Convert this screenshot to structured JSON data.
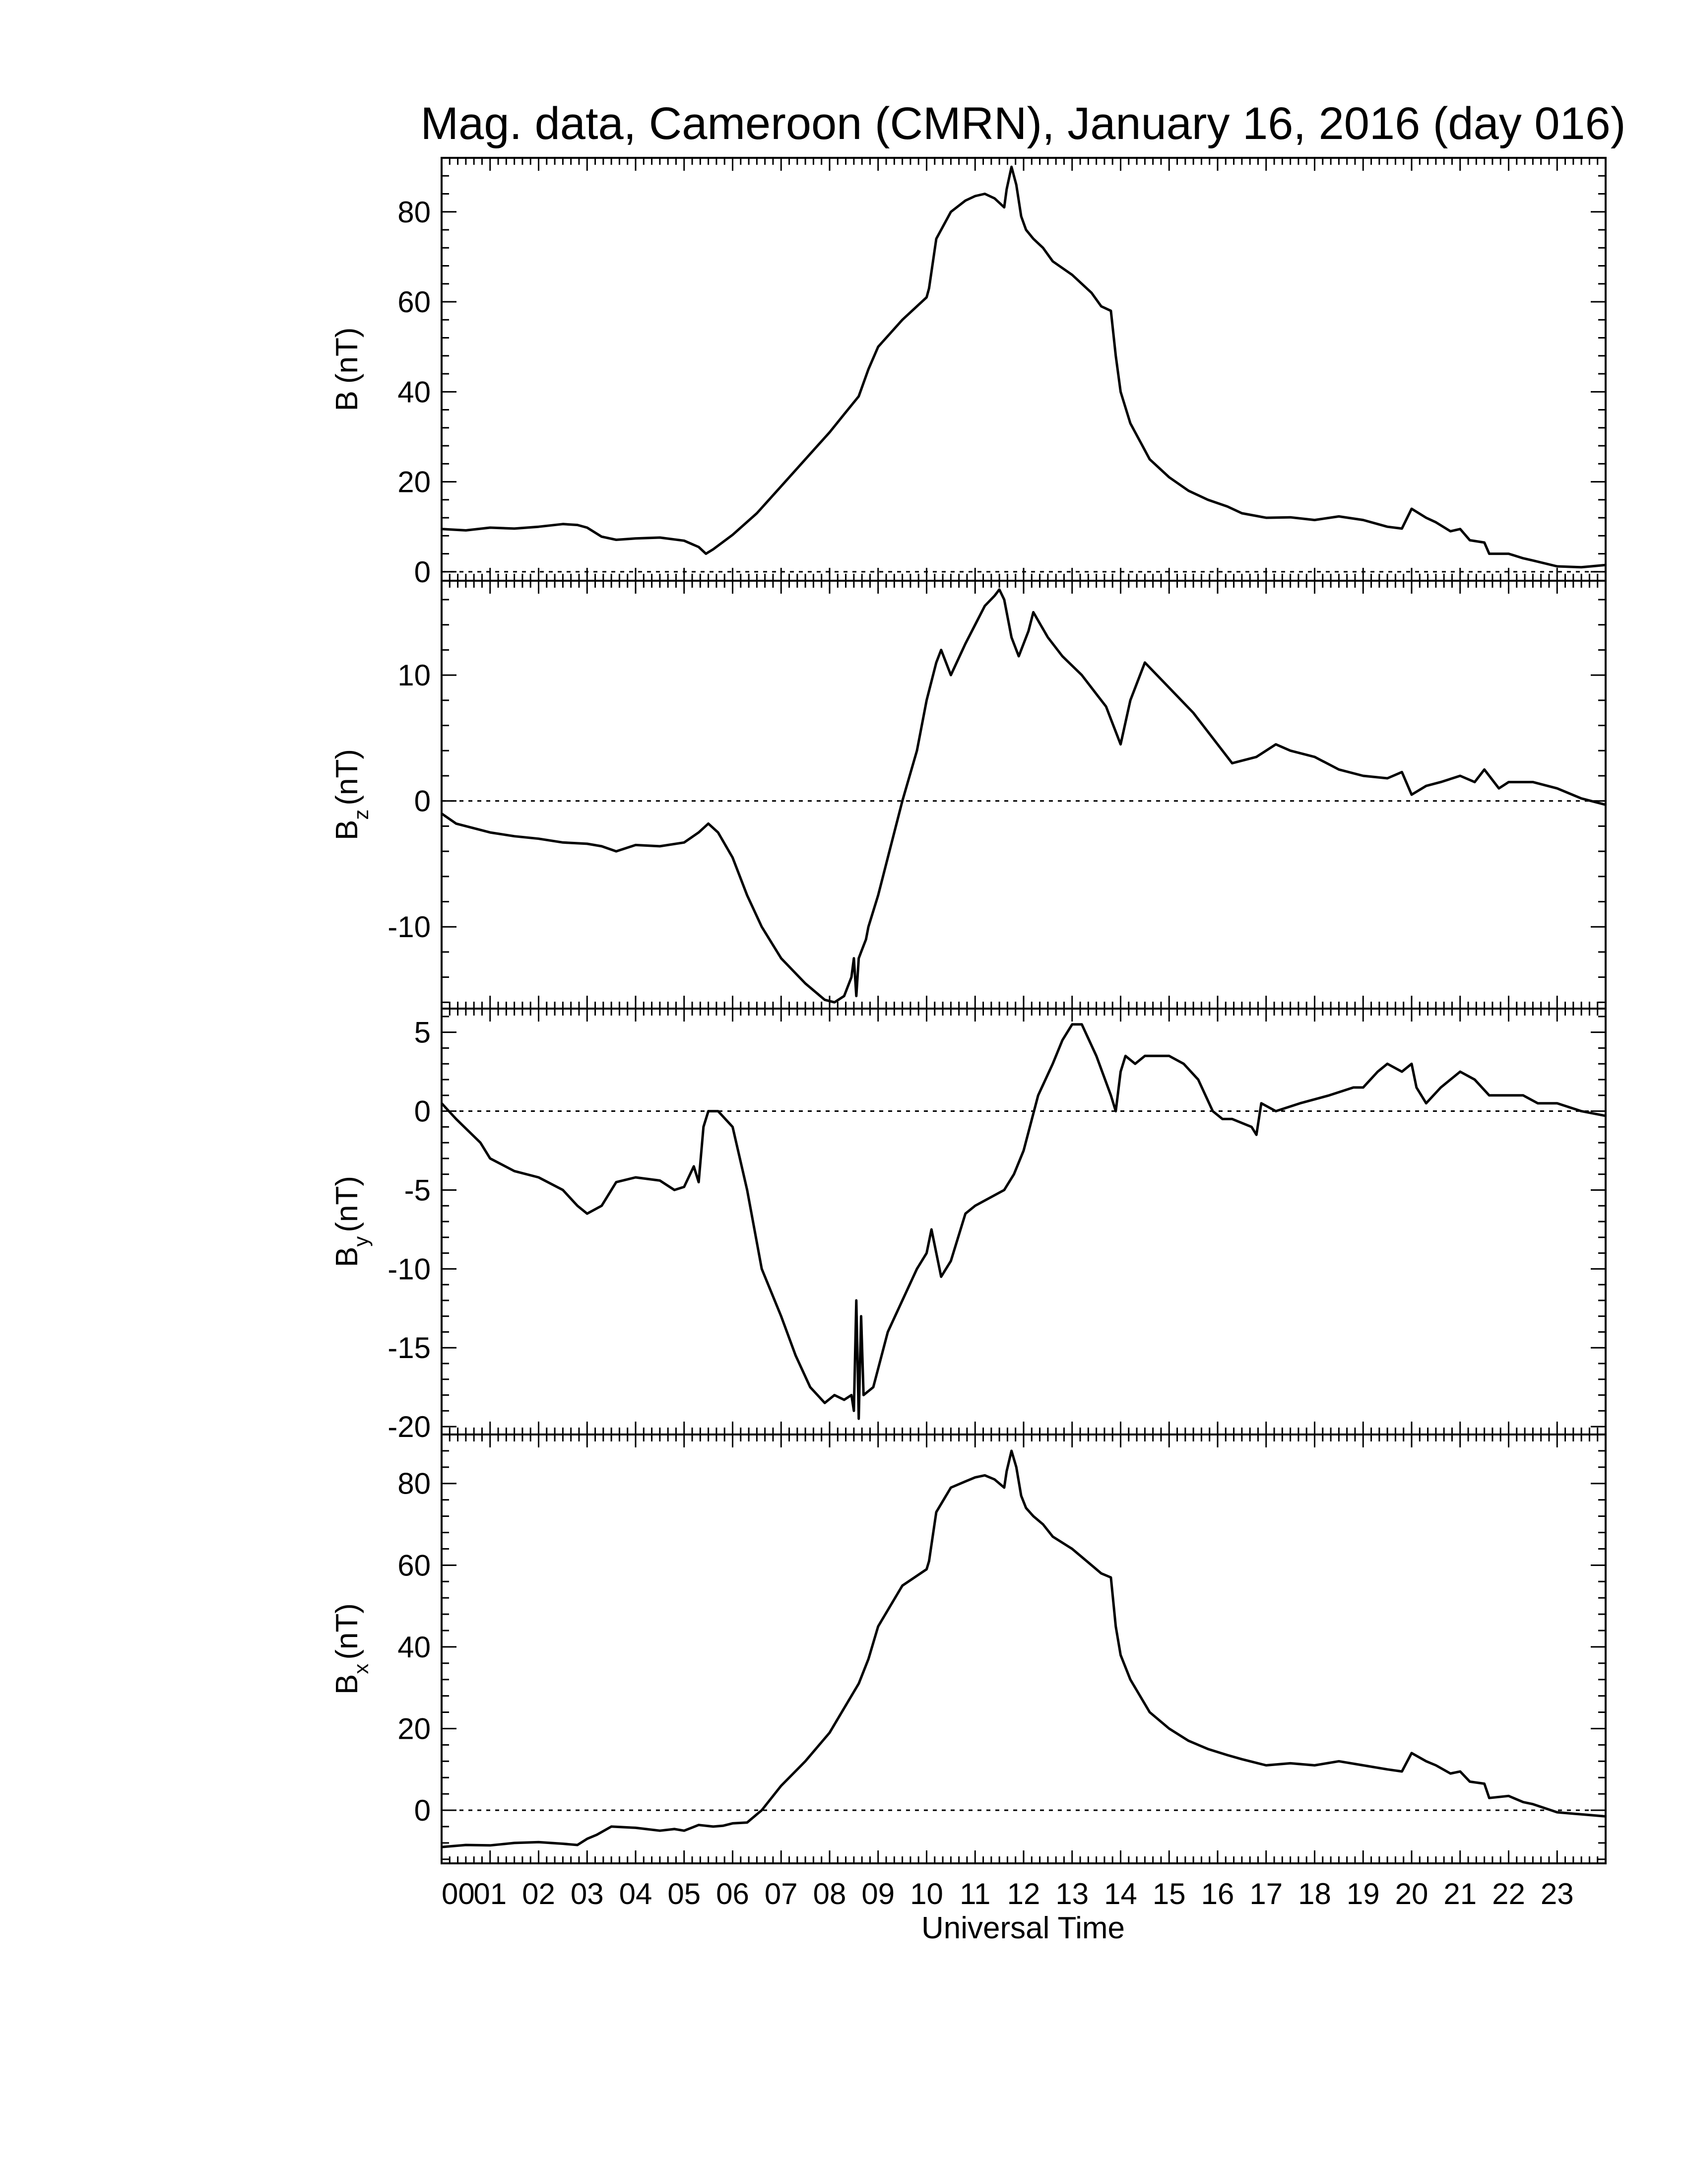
{
  "title": "Mag. data, Cameroon (CMRN), January 16, 2016 (day 016)",
  "chart_data": [
    {
      "type": "line",
      "id": "B",
      "ylabel": "B (nT)",
      "ylabel_main": "B",
      "ylabel_sub": "",
      "ylabel_unit": "(nT)",
      "xlim": [
        0,
        24
      ],
      "ylim": [
        -2,
        92
      ],
      "yticks": [
        0,
        20,
        40,
        60,
        80
      ],
      "zero_line": true,
      "x": [
        0,
        0.5,
        1,
        1.5,
        2,
        2.5,
        2.8,
        3,
        3.3,
        3.6,
        4,
        4.5,
        5,
        5.3,
        5.45,
        5.6,
        6,
        6.5,
        7,
        7.5,
        8,
        8.3,
        8.6,
        8.8,
        9,
        9.5,
        10,
        10.05,
        10.2,
        10.5,
        10.8,
        11,
        11.2,
        11.4,
        11.6,
        11.65,
        11.75,
        11.85,
        11.95,
        12.05,
        12.2,
        12.4,
        12.6,
        13,
        13.4,
        13.6,
        13.8,
        13.9,
        14,
        14.2,
        14.4,
        14.6,
        15,
        15.4,
        15.8,
        16.2,
        16.5,
        17,
        17.5,
        18,
        18.5,
        19,
        19.5,
        19.8,
        20,
        20.3,
        20.5,
        20.8,
        21,
        21.2,
        21.5,
        21.6,
        22,
        22.3,
        22.5,
        23,
        23.5,
        24
      ],
      "values": [
        9.5,
        9.2,
        9.8,
        9.6,
        10,
        10.6,
        10.4,
        9.8,
        7.8,
        7.1,
        7.4,
        7.6,
        6.9,
        5.5,
        4,
        5,
        8.2,
        13,
        19,
        25,
        31,
        35,
        39,
        45,
        50,
        56,
        61,
        63,
        74,
        80,
        82.5,
        83.5,
        84,
        83,
        81,
        85,
        90,
        86,
        79,
        76,
        74,
        72,
        69,
        66,
        62,
        59,
        58,
        48,
        40,
        33,
        29,
        25,
        21,
        18,
        16,
        14.5,
        13,
        12,
        12.1,
        11.5,
        12.3,
        11.5,
        10,
        9.6,
        14,
        12,
        11,
        9,
        9.5,
        7,
        6.5,
        4,
        4,
        3,
        2.5,
        1.2,
        1,
        1.5
      ]
    },
    {
      "type": "line",
      "id": "Bz",
      "ylabel": "Bz (nT)",
      "ylabel_main": "B",
      "ylabel_sub": "z",
      "ylabel_unit": "(nT)",
      "xlim": [
        0,
        24
      ],
      "ylim": [
        -16.5,
        17.5
      ],
      "yticks": [
        -10,
        0,
        10
      ],
      "zero_line": true,
      "x": [
        0,
        0.3,
        1,
        1.5,
        2,
        2.5,
        3,
        3.3,
        3.6,
        4,
        4.5,
        5,
        5.3,
        5.5,
        5.7,
        6,
        6.3,
        6.6,
        7,
        7.5,
        7.9,
        8.1,
        8.3,
        8.45,
        8.5,
        8.55,
        8.6,
        8.65,
        8.7,
        8.75,
        8.8,
        9,
        9.2,
        9.5,
        9.8,
        10,
        10.2,
        10.3,
        10.5,
        10.8,
        11,
        11.2,
        11.4,
        11.5,
        11.6,
        11.75,
        11.9,
        12.1,
        12.2,
        12.35,
        12.5,
        12.8,
        13.2,
        13.5,
        13.7,
        13.8,
        13.9,
        14,
        14.2,
        14.5,
        15,
        15.5,
        16,
        16.3,
        16.8,
        17.2,
        17.5,
        18,
        18.5,
        19,
        19.5,
        19.8,
        20,
        20.3,
        20.6,
        21,
        21.3,
        21.5,
        21.8,
        22,
        22.5,
        23,
        23.5,
        24
      ],
      "values": [
        -1,
        -1.8,
        -2.5,
        -2.8,
        -3,
        -3.3,
        -3.4,
        -3.6,
        -4,
        -3.5,
        -3.6,
        -3.3,
        -2.5,
        -1.8,
        -2.5,
        -4.5,
        -7.5,
        -10,
        -12.5,
        -14.5,
        -15.8,
        -16,
        -15.5,
        -14,
        -12.5,
        -15.5,
        -12.5,
        -12,
        -11.5,
        -11,
        -10,
        -7.5,
        -4.5,
        0,
        4,
        8,
        11,
        12,
        10,
        12.5,
        14,
        15.5,
        16.3,
        16.8,
        16,
        13,
        11.5,
        13.5,
        15,
        14,
        13,
        11.5,
        10,
        8.5,
        7.5,
        6.5,
        5.5,
        4.5,
        8,
        11,
        9,
        7,
        4.5,
        3,
        3.5,
        4.5,
        4,
        3.5,
        2.5,
        2,
        1.8,
        2.3,
        0.5,
        1.2,
        1.5,
        2,
        1.5,
        2.5,
        1,
        1.5,
        1.5,
        1,
        0.2,
        -0.3
      ]
    },
    {
      "type": "line",
      "id": "By",
      "ylabel": "By (nT)",
      "ylabel_main": "B",
      "ylabel_sub": "y",
      "ylabel_unit": "(nT)",
      "xlim": [
        0,
        24
      ],
      "ylim": [
        -20.5,
        6.5
      ],
      "yticks": [
        -20,
        -15,
        -10,
        -5,
        0,
        5
      ],
      "zero_line": true,
      "x": [
        0,
        0.3,
        0.8,
        1,
        1.5,
        2,
        2.5,
        2.8,
        3,
        3.3,
        3.6,
        4,
        4.5,
        4.8,
        5,
        5.2,
        5.3,
        5.4,
        5.5,
        5.7,
        6,
        6.3,
        6.6,
        7,
        7.3,
        7.6,
        7.9,
        8.1,
        8.3,
        8.45,
        8.5,
        8.55,
        8.6,
        8.65,
        8.7,
        8.9,
        9.2,
        9.5,
        9.8,
        10,
        10.1,
        10.3,
        10.5,
        10.8,
        11,
        11.3,
        11.6,
        11.8,
        12,
        12.3,
        12.6,
        12.8,
        13,
        13.2,
        13.5,
        13.8,
        13.9,
        14,
        14.1,
        14.3,
        14.5,
        15,
        15.3,
        15.6,
        15.9,
        16.1,
        16.3,
        16.7,
        16.8,
        16.9,
        17.2,
        17.7,
        18.3,
        18.8,
        19,
        19.3,
        19.5,
        19.8,
        20,
        20.1,
        20.3,
        20.6,
        21,
        21.3,
        21.6,
        22,
        22.3,
        22.6,
        23,
        23.5,
        24
      ],
      "values": [
        0.5,
        -0.5,
        -2,
        -3,
        -3.8,
        -4.2,
        -5,
        -6,
        -6.5,
        -6,
        -4.5,
        -4.2,
        -4.4,
        -5,
        -4.8,
        -3.5,
        -4.5,
        -1,
        0,
        0,
        -1,
        -5,
        -10,
        -13,
        -15.5,
        -17.5,
        -18.5,
        -18,
        -18.3,
        -18,
        -19,
        -12,
        -19.5,
        -13,
        -18,
        -17.5,
        -14,
        -12,
        -10,
        -9,
        -7.5,
        -10.5,
        -9.5,
        -6.5,
        -6,
        -5.5,
        -5,
        -4,
        -2.5,
        1,
        3,
        4.5,
        5.5,
        5.5,
        3.5,
        1,
        0,
        2.5,
        3.5,
        3,
        3.5,
        3.5,
        3,
        2,
        0,
        -0.5,
        -0.5,
        -1,
        -1.5,
        0.5,
        0,
        0.5,
        1,
        1.5,
        1.5,
        2.5,
        3,
        2.5,
        3,
        1.5,
        0.5,
        1.5,
        2.5,
        2,
        1,
        1,
        1,
        0.5,
        0.5,
        0,
        -0.3
      ]
    },
    {
      "type": "line",
      "id": "Bx",
      "ylabel": "Bx (nT)",
      "ylabel_main": "B",
      "ylabel_sub": "x",
      "ylabel_unit": "(nT)",
      "xlim": [
        0,
        24
      ],
      "ylim": [
        -13,
        92
      ],
      "yticks": [
        0,
        20,
        40,
        60,
        80
      ],
      "zero_line": true,
      "x": [
        0,
        0.5,
        1,
        1.5,
        2,
        2.5,
        2.8,
        3,
        3.2,
        3.5,
        4,
        4.5,
        4.8,
        5,
        5.3,
        5.6,
        5.8,
        6,
        6.3,
        6.6,
        7,
        7.5,
        8,
        8.3,
        8.6,
        8.8,
        9,
        9.5,
        10,
        10.05,
        10.2,
        10.5,
        10.8,
        11,
        11.2,
        11.4,
        11.6,
        11.65,
        11.75,
        11.85,
        11.95,
        12.05,
        12.2,
        12.4,
        12.6,
        13,
        13.4,
        13.6,
        13.8,
        13.9,
        14,
        14.2,
        14.4,
        14.6,
        15,
        15.4,
        15.8,
        16.2,
        16.5,
        17,
        17.5,
        18,
        18.5,
        19,
        19.5,
        19.8,
        20,
        20.3,
        20.5,
        20.8,
        21,
        21.2,
        21.5,
        21.6,
        22,
        22.3,
        22.5,
        23,
        23.5,
        24
      ],
      "values": [
        -9,
        -8.5,
        -8.6,
        -8,
        -7.8,
        -8.2,
        -8.5,
        -7,
        -6,
        -4,
        -4.3,
        -5,
        -4.6,
        -5,
        -3.6,
        -4,
        -3.8,
        -3.2,
        -3,
        0,
        6,
        12,
        19,
        25,
        31,
        37,
        45,
        55,
        59,
        61,
        73,
        79,
        80.5,
        81.5,
        82,
        81,
        79,
        83,
        88,
        84,
        77,
        74,
        72,
        70,
        67,
        64,
        60,
        58,
        57,
        45,
        38,
        32,
        28,
        24,
        20,
        17,
        15,
        13.5,
        12.5,
        11,
        11.5,
        11,
        12,
        11,
        10,
        9.5,
        14,
        12,
        11,
        9,
        9.5,
        7,
        6.5,
        3,
        3.5,
        2,
        1.5,
        -0.5,
        -1,
        -1.5
      ]
    }
  ],
  "x_axis": {
    "label": "Universal Time",
    "ticks": [
      "00",
      "01",
      "02",
      "03",
      "04",
      "05",
      "06",
      "07",
      "08",
      "09",
      "10",
      "11",
      "12",
      "13",
      "14",
      "15",
      "16",
      "17",
      "18",
      "19",
      "20",
      "21",
      "22",
      "23"
    ]
  }
}
